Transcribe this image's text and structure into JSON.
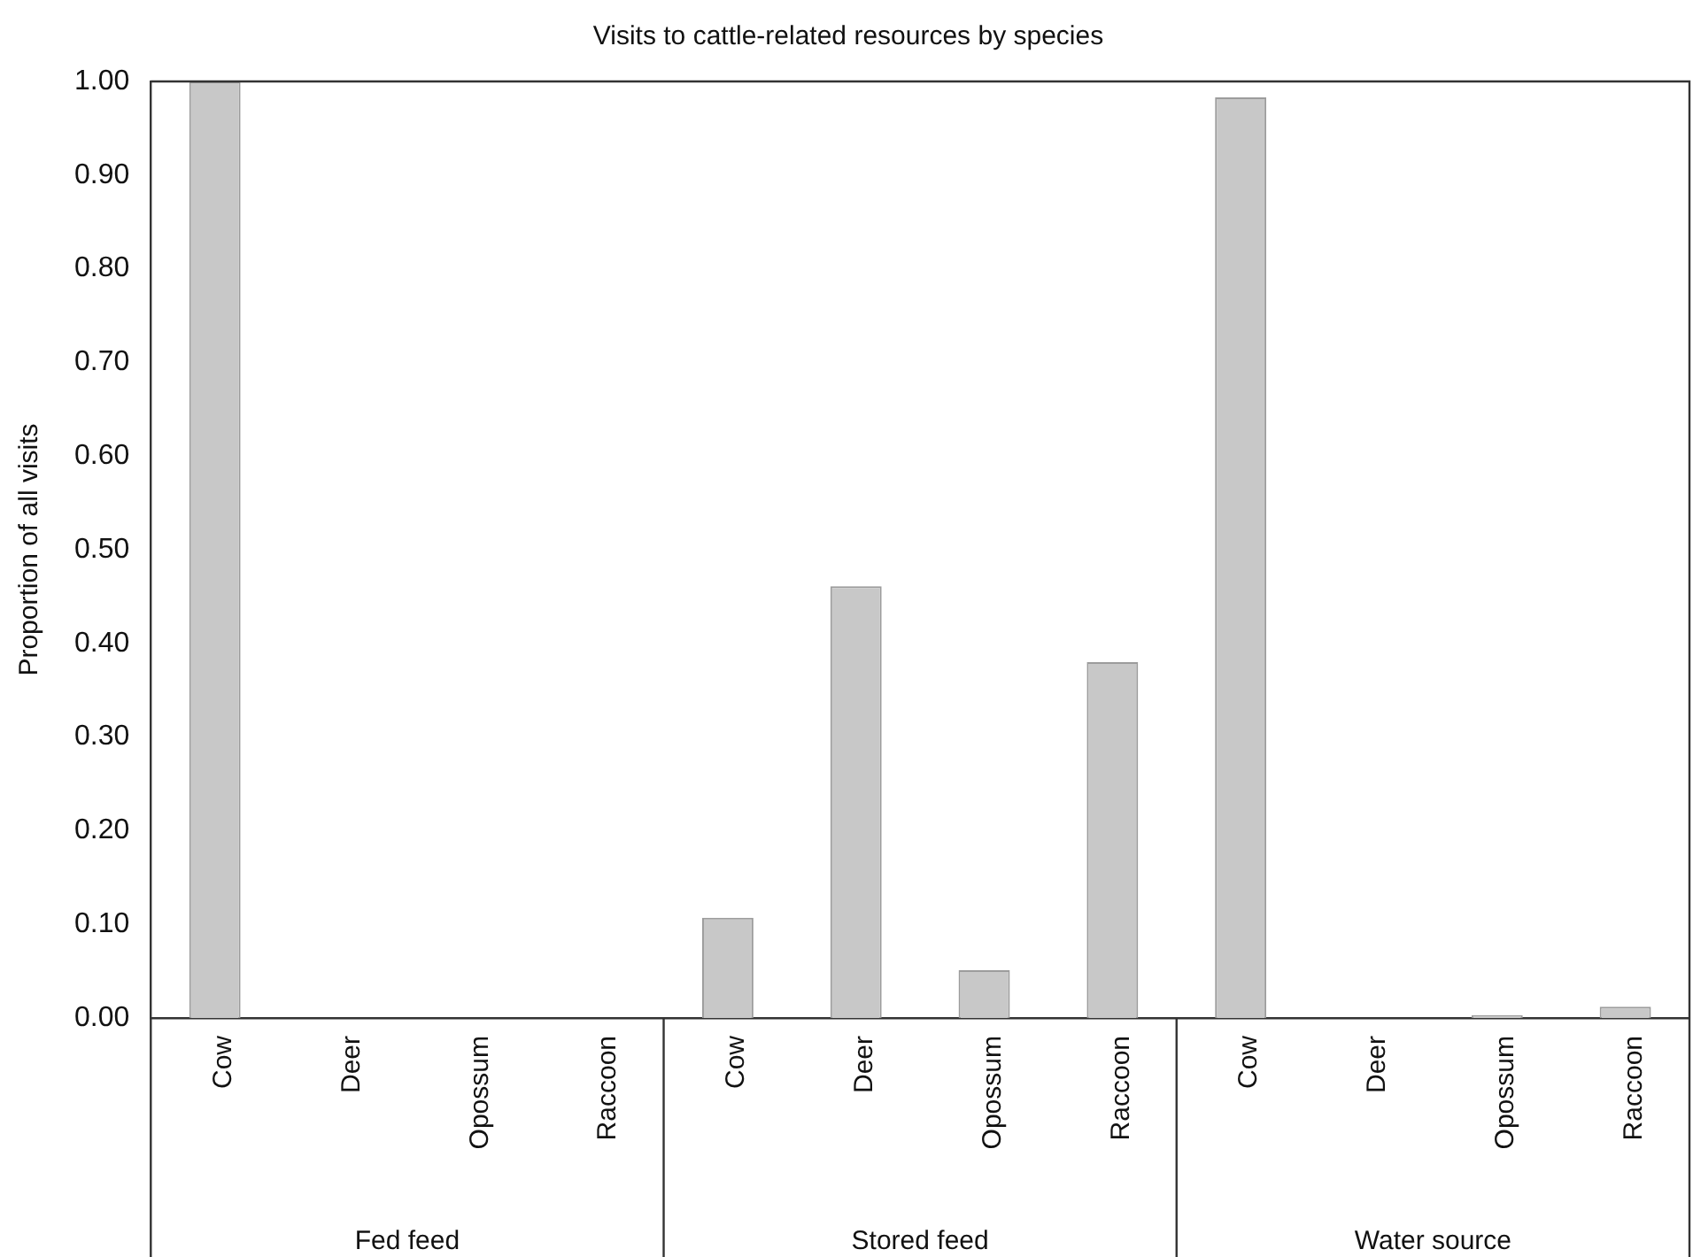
{
  "chart_data": {
    "type": "bar",
    "title": "Visits to cattle-related resources by species",
    "ylabel": "Proportion of all visits",
    "categories": [
      "Cow",
      "Deer",
      "Opossum",
      "Raccoon",
      "Cow",
      "Deer",
      "Opossum",
      "Raccoon",
      "Cow",
      "Deer",
      "Opossum",
      "Raccoon"
    ],
    "values": [
      1.0,
      0,
      0,
      0,
      0.107,
      0.461,
      0.051,
      0.38,
      0.983,
      0,
      0.003,
      0.012
    ],
    "color": "#c8c8c8",
    "ylim": [
      0,
      1
    ],
    "yticks": [
      {
        "value": 0,
        "label": "0.00"
      },
      {
        "value": 0.1,
        "label": "0.10"
      },
      {
        "value": 0.2,
        "label": "0.20"
      },
      {
        "value": 0.3,
        "label": "0.30"
      },
      {
        "value": 0.4,
        "label": "0.40"
      },
      {
        "value": 0.5,
        "label": "0.50"
      },
      {
        "value": 0.6,
        "label": "0.60"
      },
      {
        "value": 0.7,
        "label": "0.70"
      },
      {
        "value": 0.8,
        "label": "0.80"
      },
      {
        "value": 0.9,
        "label": "0.90"
      },
      {
        "value": 1,
        "label": "1.00"
      }
    ],
    "annotations": [
      "Fed feed",
      "Stored feed",
      "Water source"
    ],
    "grid": false,
    "legend": false
  }
}
